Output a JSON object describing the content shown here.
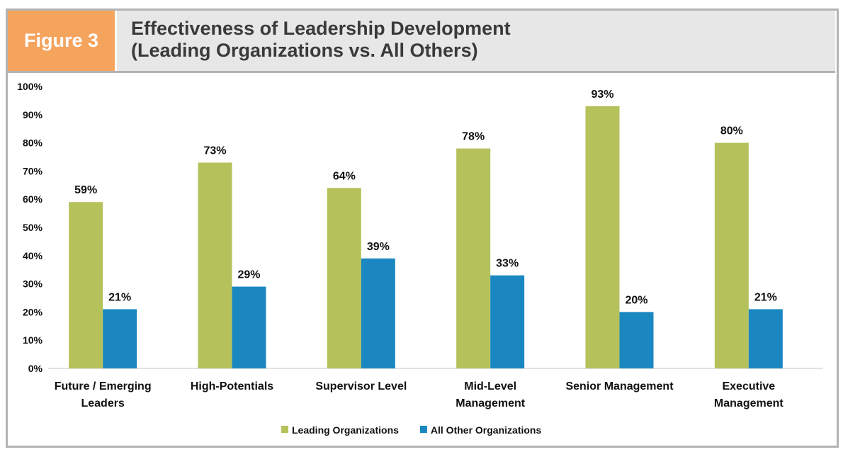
{
  "figure_label": "Figure 3",
  "chart_data": {
    "type": "bar",
    "title": [
      "Effectiveness of Leadership Development",
      "(Leading Organizations vs. All Others)"
    ],
    "categories": [
      [
        "Future / Emerging",
        "Leaders"
      ],
      [
        "High-Potentials"
      ],
      [
        "Supervisor Level"
      ],
      [
        "Mid-Level",
        "Management"
      ],
      [
        "Senior Management"
      ],
      [
        "Executive",
        "Management"
      ]
    ],
    "series": [
      {
        "name": "Leading Organizations",
        "color": "#b5c25c",
        "values": [
          59,
          73,
          64,
          78,
          93,
          80
        ]
      },
      {
        "name": "All Other Organizations",
        "color": "#1b87c0",
        "values": [
          21,
          29,
          39,
          33,
          20,
          21
        ]
      }
    ],
    "ylim": [
      0,
      100
    ],
    "yticks": [
      "0%",
      "10%",
      "20%",
      "30%",
      "40%",
      "50%",
      "60%",
      "70%",
      "80%",
      "90%",
      "100%"
    ],
    "data_label_suffix": "%",
    "grid": false,
    "legend_position": "bottom"
  }
}
